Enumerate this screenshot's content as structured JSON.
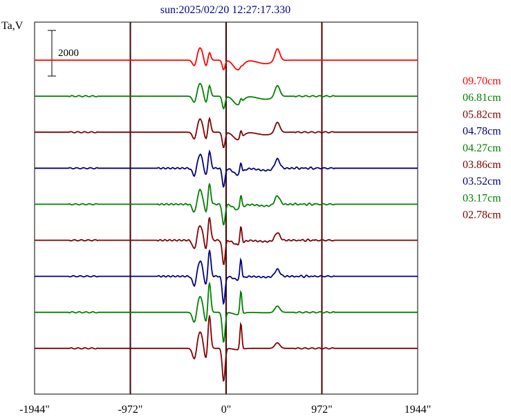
{
  "chart_data": {
    "type": "line",
    "title": "sun:2025/02/20 12:27:17.330",
    "ylabel": "Ta,V",
    "scale_bar_label": "2000",
    "x_ticks": [
      "-1944\"",
      "-972\"",
      "0\"",
      "972\"",
      "1944\""
    ],
    "x_tick_values": [
      -1944,
      -972,
      0,
      972,
      1944
    ],
    "xlim": [
      -1944,
      1944
    ],
    "grid": "vertical lines at -972, 0, 972",
    "legend": "right",
    "series": [
      {
        "name": "09.70cm",
        "color": "#ff0000"
      },
      {
        "name": "06.81cm",
        "color": "#008000"
      },
      {
        "name": "05.82cm",
        "color": "#800000"
      },
      {
        "name": "04.78cm",
        "color": "#000080"
      },
      {
        "name": "04.27cm",
        "color": "#008000"
      },
      {
        "name": "03.86cm",
        "color": "#800000"
      },
      {
        "name": "03.52cm",
        "color": "#000080"
      },
      {
        "name": "03.17cm",
        "color": "#008000"
      },
      {
        "name": "02.78cm",
        "color": "#800000"
      }
    ]
  }
}
